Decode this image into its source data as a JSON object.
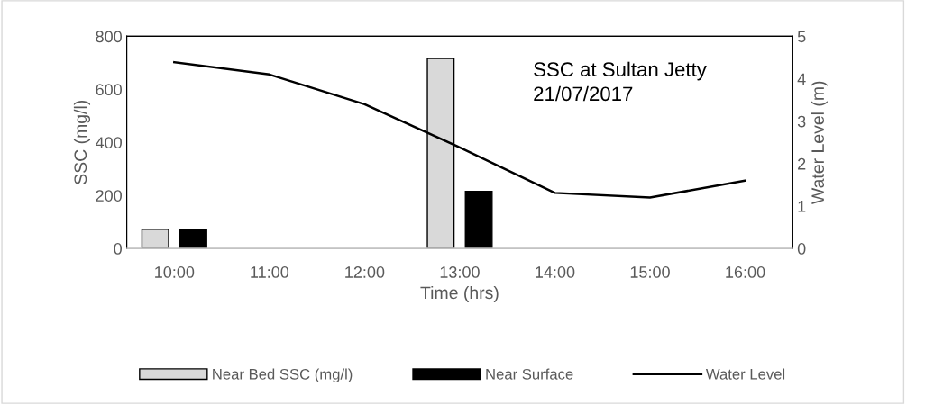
{
  "chart_data": {
    "type": "bar",
    "categories": [
      "10:00",
      "11:00",
      "12:00",
      "13:00",
      "14:00",
      "15:00",
      "16:00"
    ],
    "series": [
      {
        "name": "Near Bed SSC (mg/l)",
        "color": "#d9d9d9",
        "values": [
          72,
          null,
          null,
          716,
          null,
          null,
          null
        ]
      },
      {
        "name": "Near Surface",
        "color": "#000000",
        "values": [
          72,
          null,
          null,
          215,
          null,
          null,
          null
        ]
      },
      {
        "name": "Water Level",
        "type": "line",
        "axis": "y2",
        "color": "#000000",
        "values": [
          4.39,
          4.1,
          3.4,
          2.38,
          1.31,
          1.2,
          1.6
        ]
      }
    ],
    "xlabel": "Time (hrs)",
    "ylabel": "SSC (mg/l)",
    "y2label": "Water Level (m)",
    "ylim": [
      0,
      800
    ],
    "yticks": [
      0,
      200,
      400,
      600,
      800
    ],
    "y2lim": [
      0,
      5
    ],
    "y2ticks": [
      0,
      1,
      2,
      3,
      4,
      5
    ],
    "annotations": [
      "SSC at Sultan Jetty\n21/07/2017"
    ],
    "legend": "bottom",
    "grid": false
  }
}
